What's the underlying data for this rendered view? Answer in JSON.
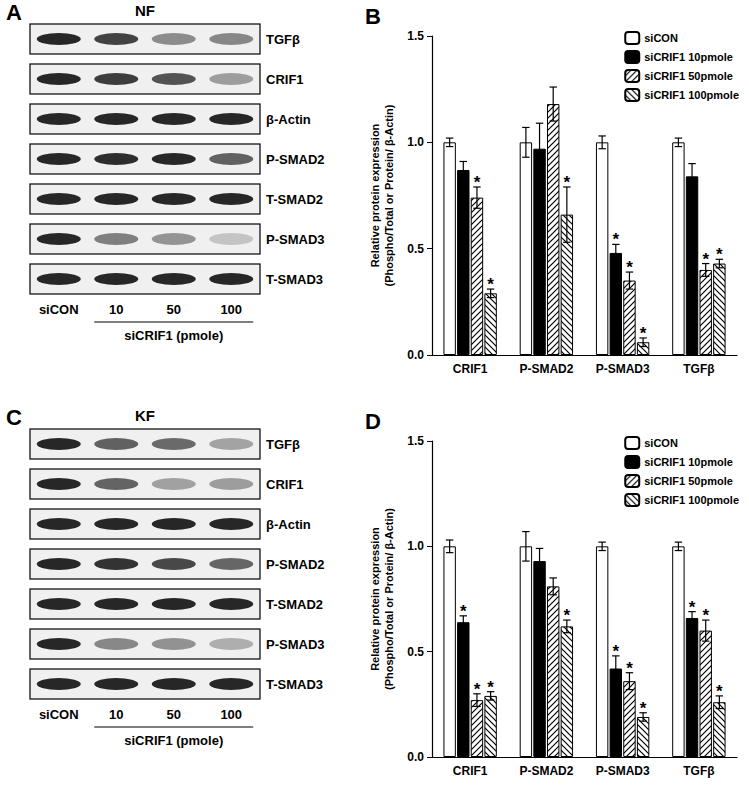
{
  "chart_data": [
    {
      "type": "bar",
      "panel": "B",
      "ylabel": "Relative protein expression\n(Phospho/Total or Protein/ β-Actin)",
      "categories": [
        "CRIF1",
        "P-SMAD2",
        "P-SMAD3",
        "TGFβ"
      ],
      "series": [
        {
          "name": "siCON",
          "color": "#ffffff",
          "values": [
            1.0,
            1.0,
            1.0,
            1.0
          ],
          "errors": [
            0.02,
            0.07,
            0.03,
            0.02
          ],
          "significant": [
            false,
            false,
            false,
            false
          ]
        },
        {
          "name": "siCRIF1 10pmole",
          "color": "#000000",
          "values": [
            0.87,
            0.97,
            0.48,
            0.84
          ],
          "errors": [
            0.04,
            0.12,
            0.04,
            0.06
          ],
          "significant": [
            false,
            false,
            true,
            false
          ]
        },
        {
          "name": "siCRIF1 50pmole",
          "color": "#ffffff",
          "values": [
            0.74,
            1.18,
            0.35,
            0.4
          ],
          "errors": [
            0.05,
            0.08,
            0.04,
            0.03
          ],
          "significant": [
            true,
            false,
            true,
            true
          ]
        },
        {
          "name": "siCRIF1 100pmole",
          "color": "#ffffff",
          "values": [
            0.29,
            0.66,
            0.06,
            0.43
          ],
          "errors": [
            0.02,
            0.13,
            0.02,
            0.02
          ],
          "significant": [
            true,
            true,
            true,
            true
          ]
        }
      ],
      "significance_label": "*",
      "ylim": [
        0,
        1.5
      ],
      "yticks": [
        {
          "value": 0,
          "label": "0.0"
        },
        0.5,
        {
          "value": 1,
          "label": "1.0"
        },
        1.5
      ],
      "grid": false,
      "legend": "upper right"
    },
    {
      "type": "bar",
      "panel": "D",
      "ylabel": "Relative protein expression\n(Phospho/Total or Protein/ β-Actin)",
      "categories": [
        "CRIF1",
        "P-SMAD2",
        "P-SMAD3",
        "TGFβ"
      ],
      "series": [
        {
          "name": "siCON",
          "color": "#ffffff",
          "values": [
            1.0,
            1.0,
            1.0,
            1.0
          ],
          "errors": [
            0.03,
            0.07,
            0.02,
            0.02
          ],
          "significant": [
            false,
            false,
            false,
            false
          ]
        },
        {
          "name": "siCRIF1 10pmole",
          "color": "#000000",
          "values": [
            0.64,
            0.93,
            0.42,
            0.66
          ],
          "errors": [
            0.03,
            0.06,
            0.06,
            0.03
          ],
          "significant": [
            true,
            false,
            true,
            true
          ]
        },
        {
          "name": "siCRIF1 50pmole",
          "color": "#ffffff",
          "values": [
            0.27,
            0.81,
            0.36,
            0.6
          ],
          "errors": [
            0.03,
            0.04,
            0.04,
            0.05
          ],
          "significant": [
            true,
            false,
            true,
            true
          ]
        },
        {
          "name": "siCRIF1 100pmole",
          "color": "#ffffff",
          "values": [
            0.29,
            0.62,
            0.19,
            0.26
          ],
          "errors": [
            0.02,
            0.03,
            0.02,
            0.03
          ],
          "significant": [
            true,
            true,
            true,
            true
          ]
        }
      ],
      "significance_label": "*",
      "ylim": [
        0,
        1.5
      ],
      "yticks": [
        {
          "value": 0,
          "label": "0.0"
        },
        0.5,
        {
          "value": 1,
          "label": "1.0"
        },
        1.5
      ],
      "grid": false,
      "legend": "upper right"
    }
  ],
  "blots": [
    {
      "panel": "A",
      "title": "NF",
      "rows": [
        "TGFβ",
        "CRIF1",
        "β-Actin",
        "P-SMAD2",
        "T-SMAD2",
        "P-SMAD3",
        "T-SMAD3"
      ],
      "lanes": [
        "siCON",
        "10",
        "50",
        "100"
      ],
      "group_label": "siCRIF1 (pmole)"
    },
    {
      "panel": "C",
      "title": "KF",
      "rows": [
        "TGFβ",
        "CRIF1",
        "β-Actin",
        "P-SMAD2",
        "T-SMAD2",
        "P-SMAD3",
        "T-SMAD3"
      ],
      "lanes": [
        "siCON",
        "10",
        "50",
        "100"
      ],
      "group_label": "siCRIF1 (pmole)"
    }
  ]
}
